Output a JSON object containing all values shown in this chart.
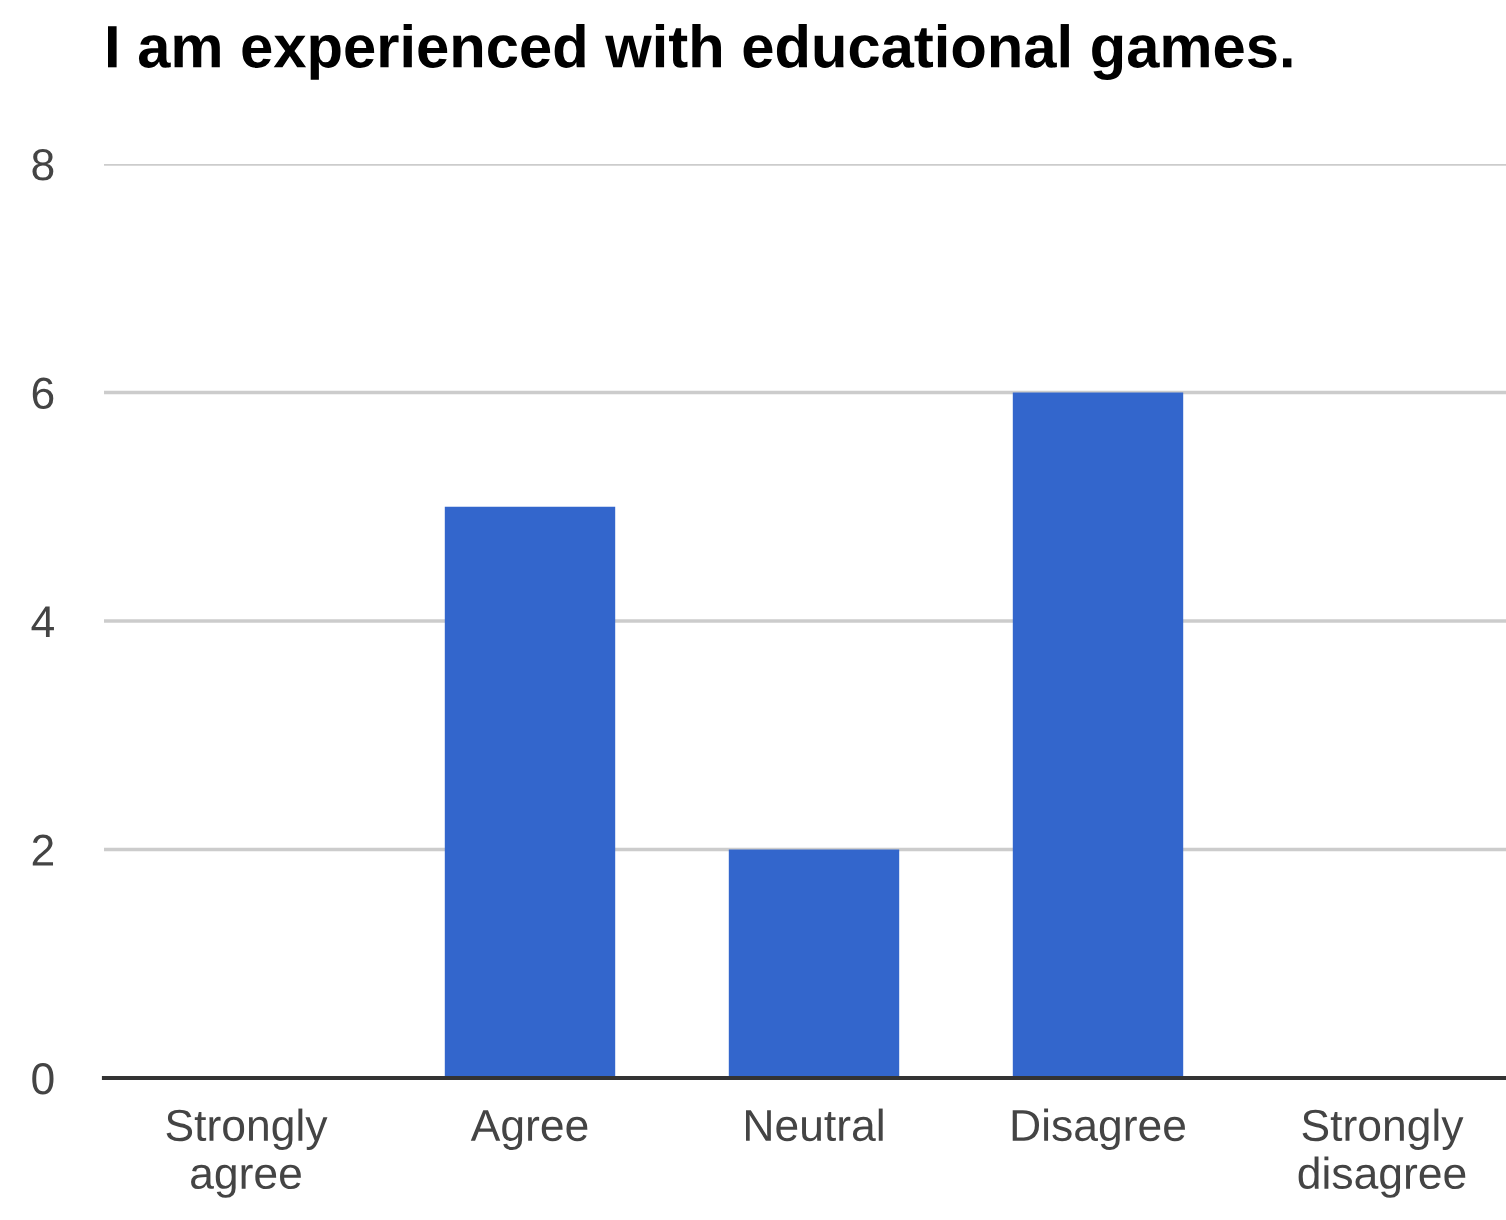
{
  "chart_data": {
    "type": "bar",
    "title": "I am experienced with educational games.",
    "categories": [
      "Strongly agree",
      "Agree",
      "Neutral",
      "Disagree",
      "Strongly disagree"
    ],
    "values": [
      0,
      5,
      2,
      6,
      0
    ],
    "color": "#3366cc",
    "ylim": [
      0,
      8
    ],
    "yticks": [
      0,
      2,
      4,
      6,
      8
    ],
    "grid": "y"
  }
}
